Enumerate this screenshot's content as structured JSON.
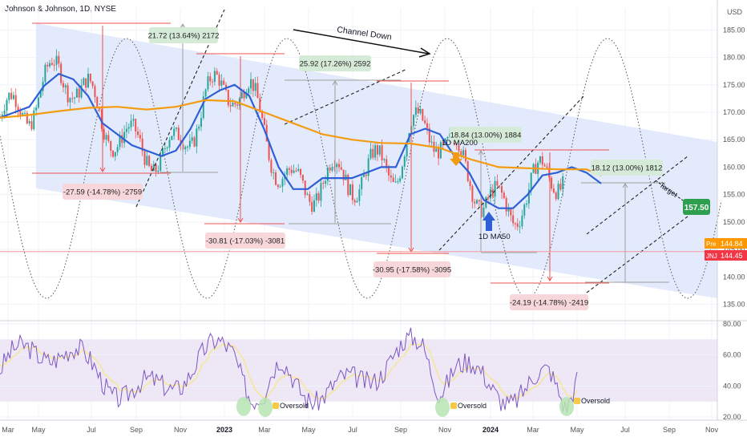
{
  "header": {
    "title": "Johnson & Johnson, 1D, NYSE",
    "currency": "USD"
  },
  "chart_data": [
    {
      "type": "line",
      "panel": "price",
      "symbol": "JNJ",
      "timeframe": "1D",
      "exchange": "NYSE",
      "ylim": [
        132,
        189
      ],
      "y_ticks": [
        185,
        180,
        175,
        170,
        165,
        160,
        155,
        150,
        145,
        140,
        135
      ],
      "x_tick_labels": [
        "Mar",
        "May",
        "Jul",
        "Sep",
        "Nov",
        "2023",
        "Mar",
        "May",
        "Jul",
        "Sep",
        "Nov",
        "2024",
        "Mar",
        "May",
        "Jul",
        "Sep",
        "Nov"
      ],
      "series": [
        {
          "name": "1D MA50",
          "color": "#2f5fd6",
          "values": [
            [
              0,
              169
            ],
            [
              1,
              170
            ],
            [
              2,
              171
            ],
            [
              3,
              174.8
            ],
            [
              4,
              177
            ],
            [
              5,
              176
            ],
            [
              6,
              173
            ],
            [
              7,
              168
            ],
            [
              8,
              166
            ],
            [
              9,
              164
            ],
            [
              10,
              163
            ],
            [
              11,
              162
            ],
            [
              12,
              163
            ],
            [
              13,
              167
            ],
            [
              14,
              172.4
            ],
            [
              15,
              174
            ],
            [
              16,
              175
            ],
            [
              17,
              173
            ],
            [
              18,
              167
            ],
            [
              19,
              160
            ],
            [
              20,
              156
            ],
            [
              21,
              156
            ],
            [
              22,
              158
            ],
            [
              23,
              158
            ],
            [
              24,
              158
            ],
            [
              25,
              159
            ],
            [
              26,
              160
            ],
            [
              27,
              160
            ],
            [
              28,
              166
            ],
            [
              29,
              167
            ],
            [
              30,
              166
            ],
            [
              31,
              162
            ],
            [
              32,
              159
            ],
            [
              33,
              154
            ],
            [
              34,
              152.5
            ],
            [
              35,
              152.5
            ],
            [
              36,
              155
            ],
            [
              37,
              158.5
            ],
            [
              38,
              159
            ],
            [
              39,
              160
            ],
            [
              40,
              159
            ],
            [
              41,
              157
            ]
          ]
        },
        {
          "name": "1D MA200",
          "color": "#f39c12",
          "values": [
            [
              0,
              169
            ],
            [
              2,
              169.5
            ],
            [
              4,
              170.2
            ],
            [
              6,
              170.8
            ],
            [
              8,
              171
            ],
            [
              10,
              170.5
            ],
            [
              12,
              171
            ],
            [
              14,
              172.2
            ],
            [
              16,
              172
            ],
            [
              18,
              170
            ],
            [
              20,
              168
            ],
            [
              22,
              166
            ],
            [
              24,
              165
            ],
            [
              26,
              164.4
            ],
            [
              28,
              164.3
            ],
            [
              30,
              163.5
            ],
            [
              32,
              161.5
            ],
            [
              34,
              160
            ],
            [
              36,
              159.8
            ],
            [
              38,
              159.6
            ],
            [
              40,
              159.6
            ],
            [
              41,
              158.5
            ]
          ]
        }
      ],
      "x": [
        "2022-03-01",
        "2022-03-22",
        "2022-04-12",
        "2022-05-03",
        "2022-05-24",
        "2022-06-14",
        "2022-07-05",
        "2022-07-26",
        "2022-08-16",
        "2022-09-06",
        "2022-09-27",
        "2022-10-18",
        "2022-11-08",
        "2022-11-29",
        "2022-12-20",
        "2023-01-10",
        "2023-01-31",
        "2023-02-21",
        "2023-03-14",
        "2023-04-04",
        "2023-04-25",
        "2023-05-16",
        "2023-06-06",
        "2023-06-27",
        "2023-07-18",
        "2023-08-08",
        "2023-08-29",
        "2023-09-19",
        "2023-10-10",
        "2023-10-31",
        "2023-11-21",
        "2023-12-12",
        "2024-01-02",
        "2024-01-23",
        "2024-02-13",
        "2024-03-05",
        "2024-03-26",
        "2024-04-16",
        "2024-05-07",
        "2024-05-28",
        "2024-06-18",
        "2024-07-09"
      ],
      "annotations": {
        "gains": [
          {
            "label": "21.72 (13.64%) 2172"
          },
          {
            "label": "25.92 (17.26%) 2592"
          },
          {
            "label": "18.84 (13.00%) 1884"
          },
          {
            "label": "18.12 (13.00%) 1812"
          }
        ],
        "losses": [
          {
            "label": "-27.59 (-14.78%) -2759"
          },
          {
            "label": "-30.81 (-17.03%) -3081"
          },
          {
            "label": "-30.95 (-17.58%) -3095"
          },
          {
            "label": "-24.19 (-14.78%) -2419"
          }
        ],
        "texts": {
          "channel": "Channel Down",
          "ma200": "1D MA200",
          "ma50": "1D MA50",
          "target_word": "Target",
          "target_value": "157.50"
        },
        "price_tags": [
          {
            "tag": "Pre",
            "value": "144.84",
            "color": "#ff9800"
          },
          {
            "tag": "JNJ",
            "value": "144.45",
            "color": "#f23645"
          }
        ]
      },
      "colors": {
        "channel_fill": "#dde6fb",
        "gain_box": "#d6ead8",
        "loss_box": "#f8d7da",
        "red_line": "#ef5350",
        "target_box": "#2e9e4f"
      }
    },
    {
      "type": "line",
      "panel": "rsi",
      "ylim": [
        18,
        82
      ],
      "y_ticks": [
        80,
        60,
        40,
        20
      ],
      "y_tick_labels": [
        "80.00",
        "60.00",
        "40.00",
        "20.00"
      ],
      "band": [
        30,
        70
      ],
      "oversold_label": "Oversold",
      "colors": {
        "rsi": "#7e57c2",
        "signal": "#f6e68f",
        "band": "#ede7f6",
        "oversold_marker": "#b7e4b3"
      }
    }
  ]
}
